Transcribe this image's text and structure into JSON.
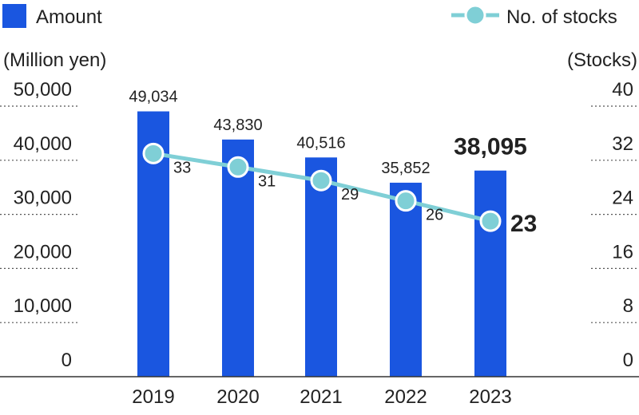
{
  "chart_data": {
    "type": "bar",
    "categories": [
      "2019",
      "2020",
      "2021",
      "2022",
      "2023"
    ],
    "series": [
      {
        "name": "Amount",
        "kind": "bar",
        "axis": "left",
        "color": "#1a56e0",
        "values": [
          49034,
          43830,
          40516,
          35852,
          38095
        ],
        "labels": [
          "49,034",
          "43,830",
          "40,516",
          "35,852",
          "38,095"
        ]
      },
      {
        "name": "No. of stocks",
        "kind": "line",
        "axis": "right",
        "color": "#7fcfd6",
        "values": [
          33,
          31,
          29,
          26,
          23
        ],
        "labels": [
          "33",
          "31",
          "29",
          "26",
          "23"
        ]
      }
    ],
    "highlight_index": 4,
    "y_left": {
      "label": "(Million yen)",
      "range": [
        0,
        50000
      ],
      "ticks": [
        "0",
        "10,000",
        "20,000",
        "30,000",
        "40,000",
        "50,000"
      ]
    },
    "y_right": {
      "label": "(Stocks)",
      "range": [
        0,
        40
      ],
      "ticks": [
        "0",
        "8",
        "16",
        "24",
        "32",
        "40"
      ]
    },
    "grid": "dotted",
    "legend_position": "top"
  }
}
